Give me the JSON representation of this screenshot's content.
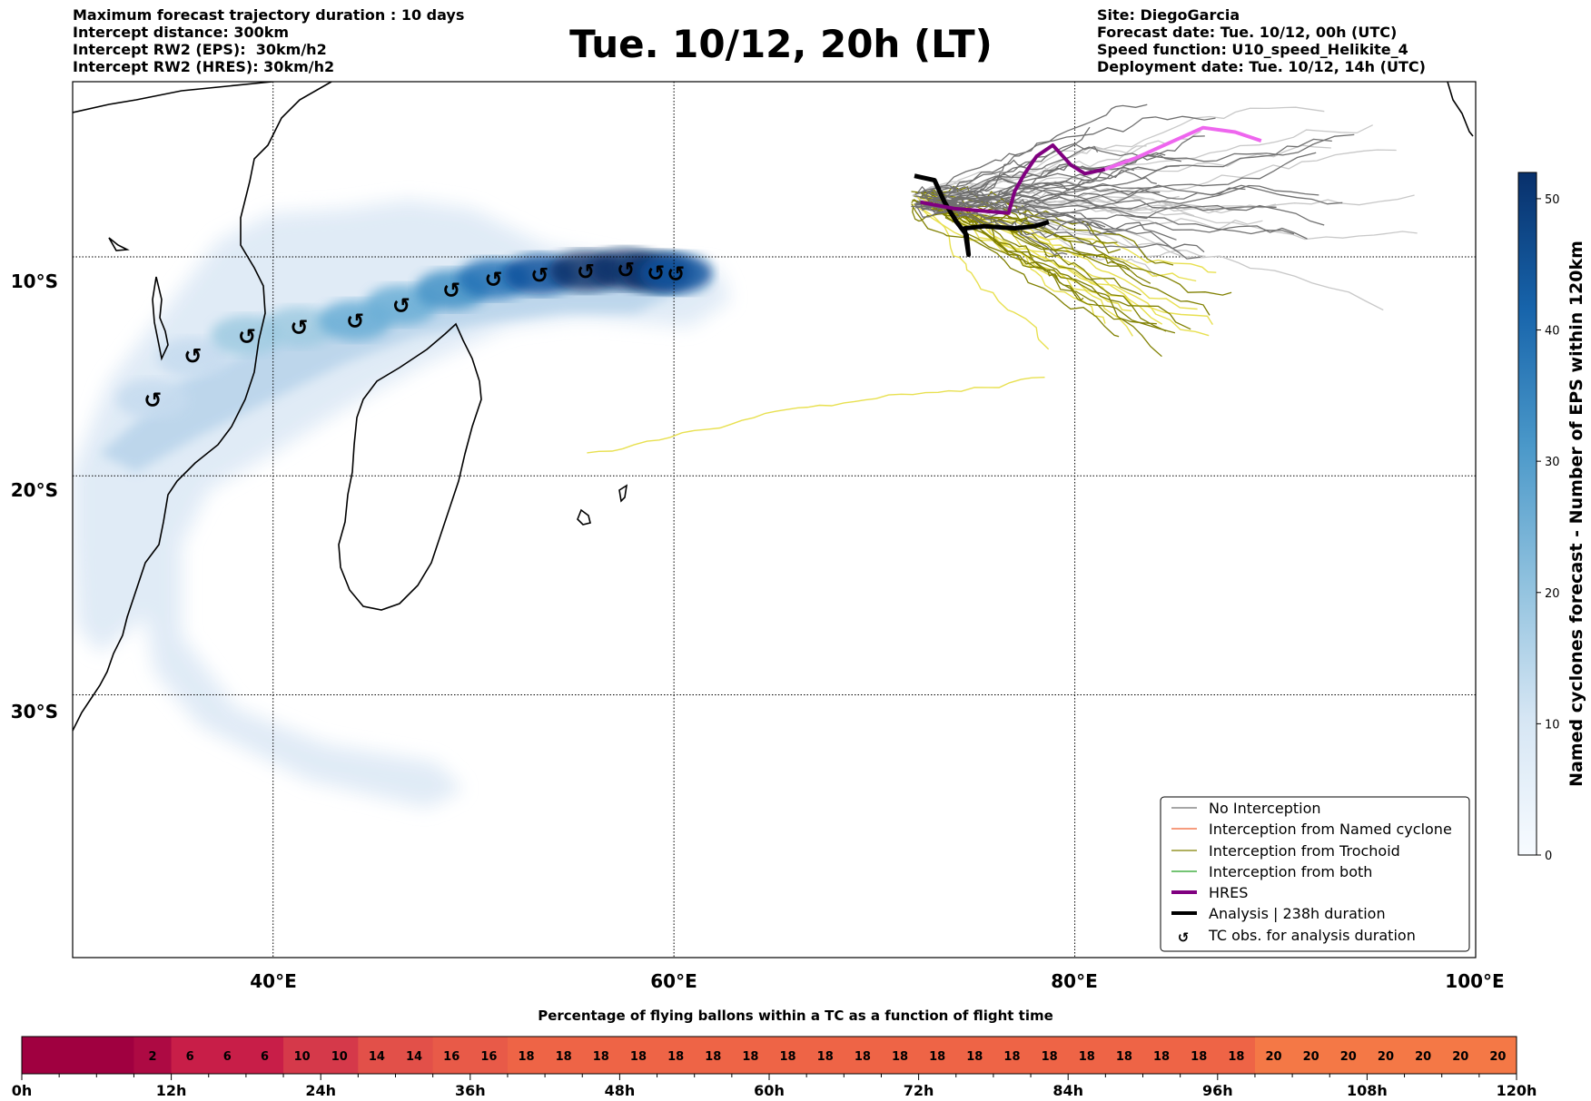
{
  "header": {
    "left": [
      "Maximum forecast trajectory duration : 10 days",
      "Intercept distance: 300km",
      "Intercept RW2 (EPS):  30km/h2",
      "Intercept RW2 (HRES): 30km/h2"
    ],
    "title": "Tue. 10/12, 20h (LT)",
    "right": [
      "Site: DiegoGarcia",
      "Forecast date: Tue. 10/12, 00h (UTC)",
      "Speed function: U10_speed_Helikite_4",
      "Deployment date: Tue. 10/12, 14h (UTC)"
    ]
  },
  "colors": {
    "no_interception": "#707070",
    "named_cyclone": "#f06030",
    "trochoid": "#808000",
    "both": "#20a020",
    "hres": "#800080",
    "hres_late": "#ee66ee",
    "analysis": "#000000",
    "yellow_tracks": "#e8e050",
    "light_tracks": "#c8c8c8",
    "density_max": "#08306b",
    "density_min": "#f7fbff"
  },
  "chart_data": [
    {
      "type": "map",
      "xaxis": {
        "ticks": [
          40,
          60,
          80,
          100
        ],
        "tick_labels": [
          "40°E",
          "60°E",
          "80°E",
          "100°E"
        ],
        "range": [
          30,
          100
        ]
      },
      "yaxis": {
        "ticks": [
          -10,
          -20,
          -30
        ],
        "tick_labels": [
          "10°S",
          "20°S",
          "30°S"
        ],
        "range": [
          -42,
          -2
        ]
      },
      "grid": true,
      "colorbar": {
        "label": "Named cyclones forecast - Number of EPS within 120km",
        "ticks": [
          0,
          10,
          20,
          30,
          40,
          50
        ],
        "range": [
          0,
          52
        ]
      },
      "legend": {
        "position": "lower-right",
        "entries": [
          {
            "label": "No Interception",
            "color": "#707070",
            "style": "thin"
          },
          {
            "label": "Interception from Named cyclone",
            "color": "#f06030",
            "style": "thin"
          },
          {
            "label": "Interception from Trochoid",
            "color": "#808000",
            "style": "thin"
          },
          {
            "label": "Interception from both",
            "color": "#20a020",
            "style": "thin"
          },
          {
            "label": "HRES",
            "color": "#800080",
            "style": "thick"
          },
          {
            "label": "Analysis | 238h duration",
            "color": "#000000",
            "style": "thick"
          },
          {
            "label": "TC obs. for analysis duration",
            "color": "#000000",
            "style": "marker"
          }
        ]
      },
      "tc_observations": [
        [
          34,
          -16.5
        ],
        [
          36,
          -14.5
        ],
        [
          38.7,
          -13.6
        ],
        [
          41.3,
          -13.2
        ],
        [
          44.1,
          -12.9
        ],
        [
          46.4,
          -12.2
        ],
        [
          48.9,
          -11.5
        ],
        [
          51,
          -11
        ],
        [
          53.3,
          -10.8
        ],
        [
          55.6,
          -10.65
        ],
        [
          57.6,
          -10.55
        ],
        [
          59.1,
          -10.7
        ],
        [
          60.1,
          -10.75
        ]
      ],
      "hres_track": [
        [
          72.3,
          -7.5
        ],
        [
          74,
          -7.8
        ],
        [
          76.7,
          -8.0
        ],
        [
          77,
          -7.0
        ],
        [
          77.5,
          -6.2
        ],
        [
          78.1,
          -5.4
        ],
        [
          78.9,
          -4.9
        ],
        [
          79.8,
          -5.8
        ],
        [
          80.5,
          -6.2
        ],
        [
          81.5,
          -6.0
        ],
        [
          83,
          -5.5
        ],
        [
          84.7,
          -4.8
        ],
        [
          86.4,
          -4.1
        ],
        [
          88,
          -4.3
        ],
        [
          89.3,
          -4.7
        ]
      ],
      "analysis_track": [
        [
          72,
          -6.3
        ],
        [
          73,
          -6.5
        ],
        [
          73.5,
          -7.5
        ],
        [
          74.1,
          -8.4
        ],
        [
          74.6,
          -9.0
        ],
        [
          74.7,
          -9.9
        ],
        [
          74.5,
          -8.7
        ],
        [
          75.5,
          -8.6
        ],
        [
          77,
          -8.7
        ],
        [
          78,
          -8.6
        ],
        [
          78.7,
          -8.4
        ]
      ],
      "density_core": [
        [
          34,
          -16.5,
          8
        ],
        [
          36,
          -14.6,
          12
        ],
        [
          38.7,
          -13.6,
          16
        ],
        [
          41.3,
          -13.2,
          18
        ],
        [
          44.1,
          -12.9,
          20
        ],
        [
          46.4,
          -12.2,
          24
        ],
        [
          48.9,
          -11.5,
          30
        ],
        [
          51,
          -11,
          38
        ],
        [
          53.3,
          -10.8,
          44
        ],
        [
          55.6,
          -10.65,
          48
        ],
        [
          57.6,
          -10.55,
          50
        ],
        [
          59.1,
          -10.7,
          48
        ],
        [
          60.1,
          -10.75,
          40
        ]
      ]
    },
    {
      "type": "bar",
      "title": "Percentage of flying ballons within a TC as a function of flight time",
      "x_tick_labels": [
        "0h",
        "12h",
        "24h",
        "36h",
        "48h",
        "60h",
        "72h",
        "84h",
        "96h",
        "108h",
        "120h"
      ],
      "values": [
        0,
        0,
        0,
        2,
        6,
        6,
        6,
        10,
        10,
        14,
        14,
        16,
        16,
        18,
        18,
        18,
        18,
        18,
        18,
        18,
        18,
        18,
        18,
        18,
        18,
        18,
        18,
        18,
        18,
        18,
        18,
        18,
        18,
        20,
        20,
        20,
        20,
        20,
        20,
        20
      ],
      "labels": [
        "",
        "",
        "",
        "2",
        "6",
        "6",
        "6",
        "10",
        "10",
        "14",
        "14",
        "16",
        "16",
        "18",
        "18",
        "18",
        "18",
        "18",
        "18",
        "18",
        "18",
        "18",
        "18",
        "18",
        "18",
        "18",
        "18",
        "18",
        "18",
        "18",
        "18",
        "18",
        "18",
        "20",
        "20",
        "20",
        "20",
        "20",
        "20",
        "20"
      ]
    }
  ]
}
